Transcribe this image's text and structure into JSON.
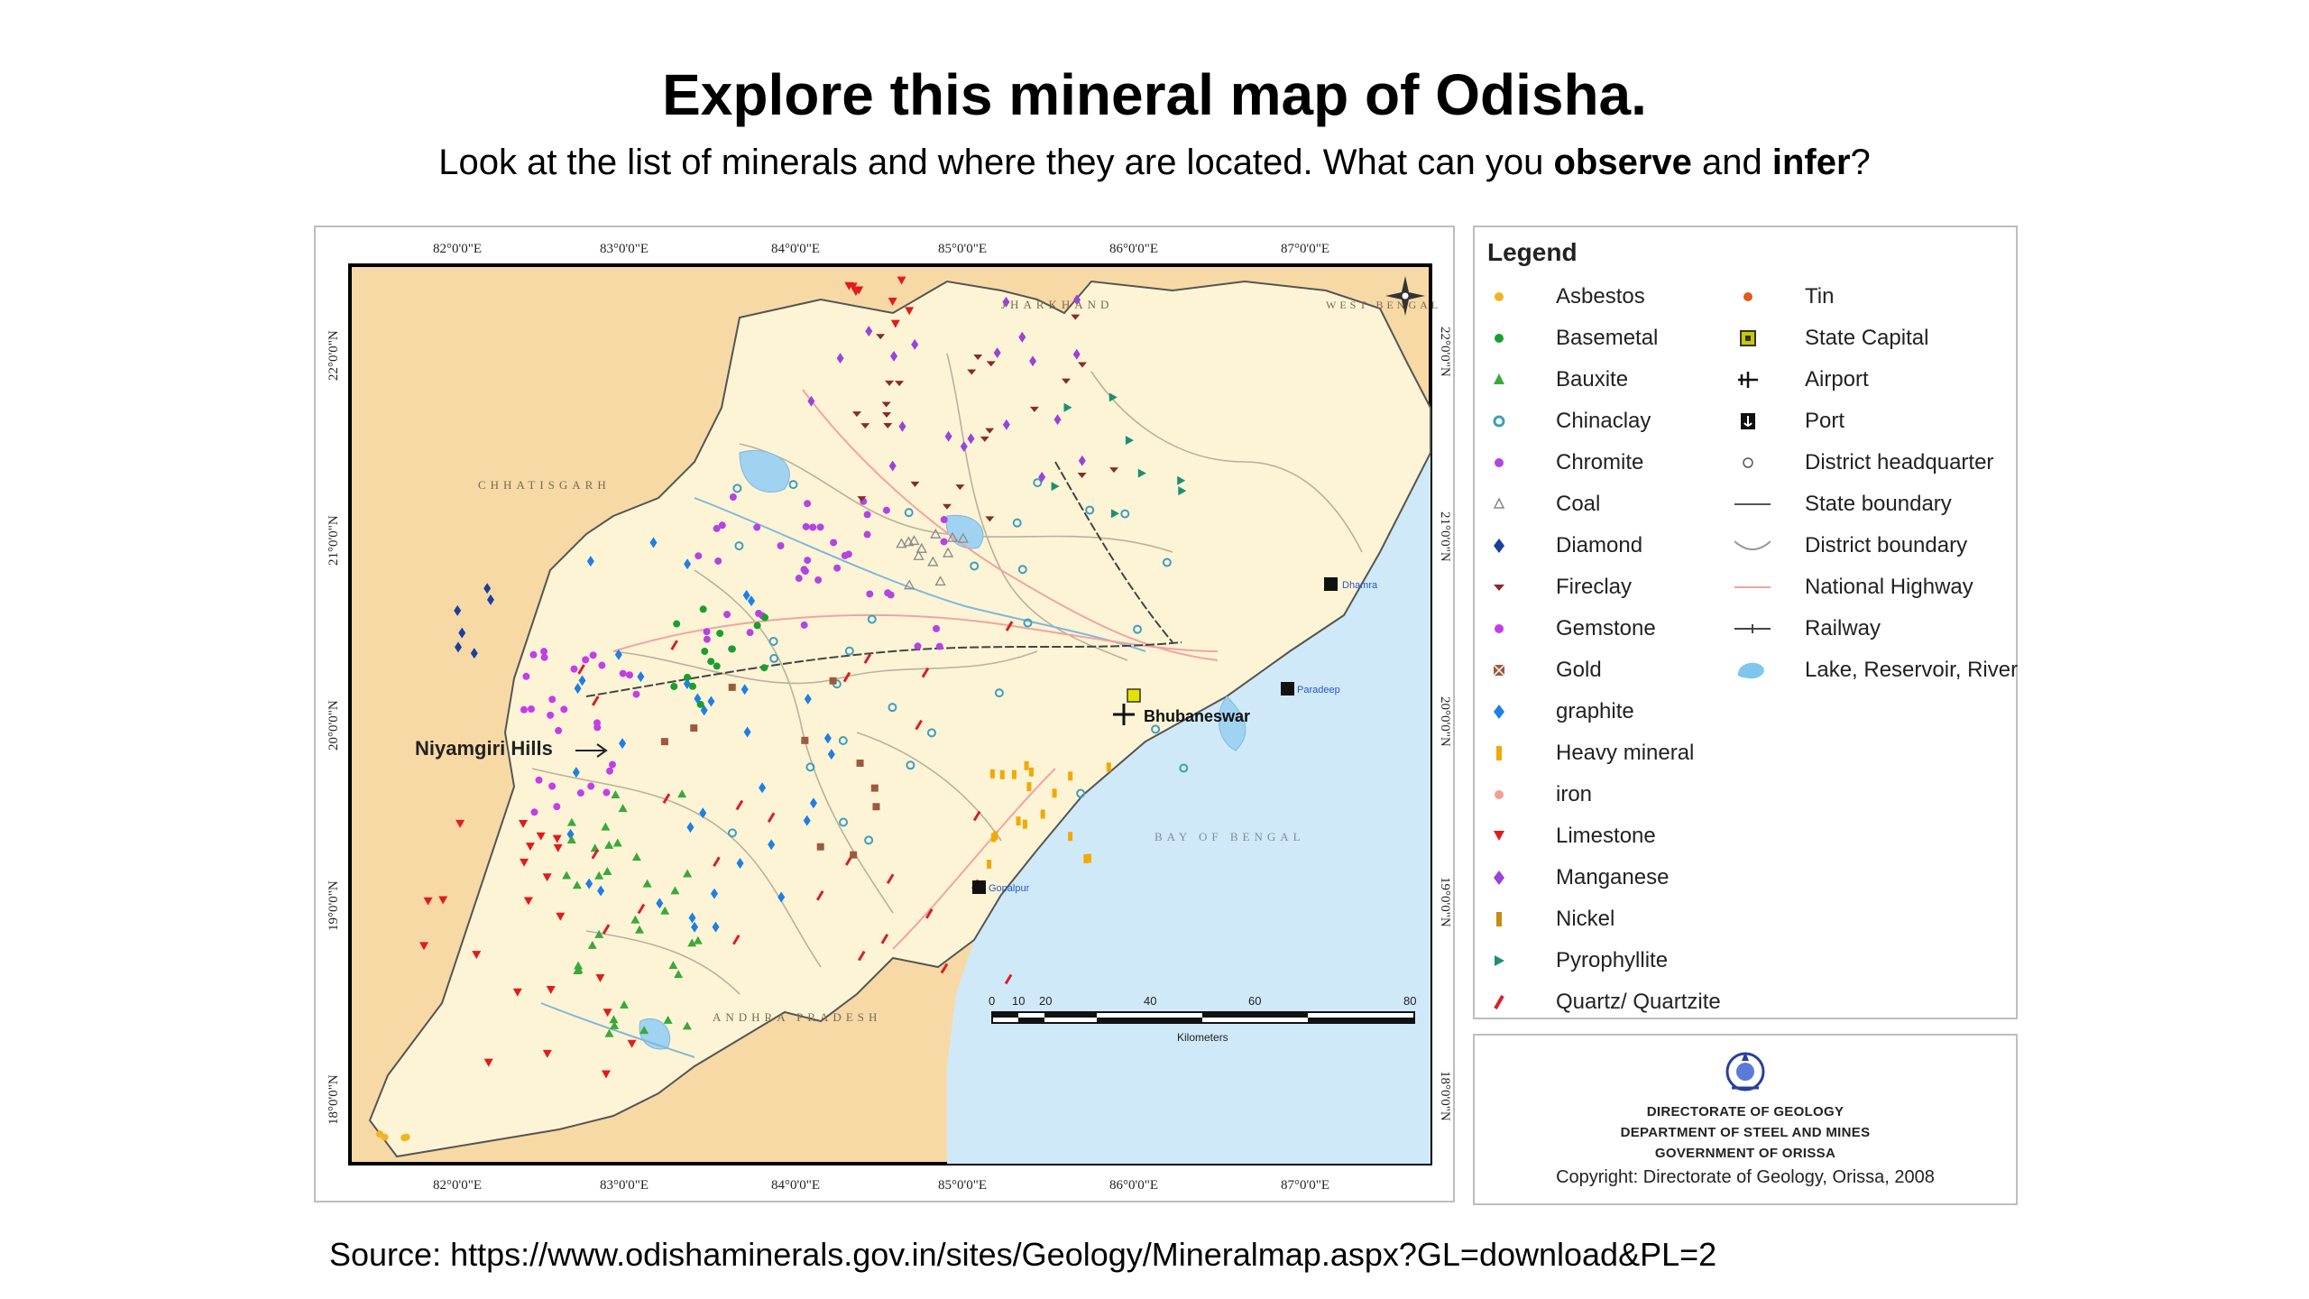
{
  "slide": {
    "title": "Explore this mineral map of Odisha.",
    "subtitle_parts": [
      "Look at the list of minerals and where they are located. What can you ",
      "observe",
      " and ",
      "infer",
      "?"
    ],
    "source": "Source: https://www.odishaminerals.gov.in/sites/Geology/Mineralmap.aspx?GL=download&PL=2"
  },
  "map": {
    "top_longitudes": [
      "82°0'0\"E",
      "83°0'0\"E",
      "84°0'0\"E",
      "85°0'0\"E",
      "86°0'0\"E",
      "87°0'0\"E"
    ],
    "bottom_longitudes": [
      "82°0'0\"E",
      "83°0'0\"E",
      "84°0'0\"E",
      "85°0'0\"E",
      "86°0'0\"E",
      "87°0'0\"E"
    ],
    "latitudes": [
      "22°0'0\"N",
      "21°0'0\"N",
      "20°0'0\"N",
      "19°0'0\"N",
      "18°0'0\"N"
    ],
    "neighbors": [
      "JHARKHAND",
      "WEST BENGAL",
      "CHHATISGARH",
      "ANDHRA PRADESH",
      "BAY OF BENGAL"
    ],
    "highlight_label": "Niyamgiri Hills",
    "capital_label": "Bhubaneswar",
    "ports": [
      "Dhamra",
      "Paradeep",
      "Gopalpur"
    ],
    "scale_numbers": [
      "0",
      "10",
      "20",
      "40",
      "60",
      "80"
    ],
    "scale_unit": "Kilometers"
  },
  "legend": {
    "title": "Legend",
    "left_items": [
      {
        "label": "Asbestos",
        "color": "#f0b323",
        "shape": "dot"
      },
      {
        "label": "Basemetal",
        "color": "#18a02c",
        "shape": "dot"
      },
      {
        "label": "Bauxite",
        "color": "#3aa93a",
        "shape": "triangle"
      },
      {
        "label": "Chinaclay",
        "color": "#3d9fc0",
        "shape": "ring"
      },
      {
        "label": "Chromite",
        "color": "#b444e0",
        "shape": "dot"
      },
      {
        "label": "Coal",
        "color": "#888888",
        "shape": "triangle-outline"
      },
      {
        "label": "Diamond",
        "color": "#1a3f9c",
        "shape": "diamond"
      },
      {
        "label": "Fireclay",
        "color": "#8b2a2a",
        "shape": "wedge"
      },
      {
        "label": "Gemstone",
        "color": "#c23ee8",
        "shape": "dot"
      },
      {
        "label": "Gold",
        "color": "#9c5a3c",
        "shape": "square-x"
      },
      {
        "label": "graphite",
        "color": "#1e7fe6",
        "shape": "diamond"
      },
      {
        "label": "Heavy mineral",
        "color": "#f2a900",
        "shape": "bar"
      },
      {
        "label": "iron",
        "color": "#f0a090",
        "shape": "dot"
      },
      {
        "label": "Limestone",
        "color": "#e21b1b",
        "shape": "triangle-down"
      },
      {
        "label": "Manganese",
        "color": "#9b43d8",
        "shape": "diamond"
      },
      {
        "label": "Nickel",
        "color": "#c98a16",
        "shape": "bar"
      },
      {
        "label": "Pyrophyllite",
        "color": "#1b8f74",
        "shape": "triangle-right"
      },
      {
        "label": "Quartz/ Quartzite",
        "color": "#d81f2a",
        "shape": "slash"
      }
    ],
    "right_items": [
      {
        "label": "Tin",
        "color": "#e05a1a",
        "shape": "dot"
      },
      {
        "label": "State Capital",
        "color": "#c8c800",
        "shape": "square"
      },
      {
        "label": "Airport",
        "color": "#111111",
        "shape": "plane"
      },
      {
        "label": "Port",
        "color": "#111111",
        "shape": "anchor"
      },
      {
        "label": "District headquarter",
        "color": "#555555",
        "shape": "circle"
      },
      {
        "label": "State boundary",
        "color": "#555555",
        "shape": "line"
      },
      {
        "label": "District boundary",
        "color": "#999999",
        "shape": "curve"
      },
      {
        "label": "National Highway",
        "color": "#f2a3a3",
        "shape": "line"
      },
      {
        "label": "Railway",
        "color": "#444444",
        "shape": "rail"
      },
      {
        "label": "Lake, Reservoir, River",
        "color": "#7fc6ec",
        "shape": "blob"
      }
    ]
  },
  "credit": {
    "lines": [
      "DIRECTORATE OF GEOLOGY",
      "DEPARTMENT OF STEEL AND MINES",
      "GOVERNMENT OF ORISSA"
    ],
    "copyright": "Copyright: Directorate of Geology, Orissa, 2008"
  }
}
